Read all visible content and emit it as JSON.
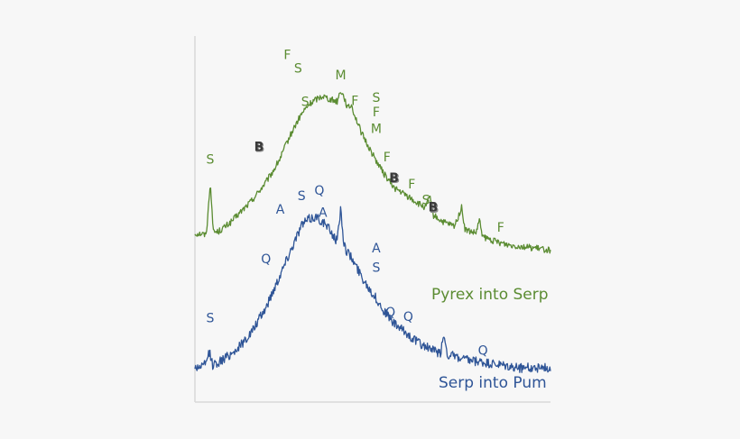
{
  "chart_data": {
    "type": "line",
    "title": "",
    "xlabel": "",
    "ylabel": "",
    "grid": false,
    "axes_visible": [
      "left",
      "bottom"
    ],
    "colors": {
      "axis": "#d9d9d9",
      "series_1": "#5b8c32",
      "series_2": "#2f5597",
      "bold_label_fill": "#3a3a3a",
      "bold_label_shadow": "#8a8a8a"
    },
    "series": [
      {
        "name": "Pyrex into Serp",
        "color": "#5b8c32",
        "shape_points": [
          [
            0,
            0.72
          ],
          [
            0.02,
            0.72
          ],
          [
            0.03,
            0.71
          ],
          [
            0.035,
            0.78
          ],
          [
            0.04,
            0.92
          ],
          [
            0.043,
            1.0
          ],
          [
            0.046,
            0.92
          ],
          [
            0.05,
            0.76
          ],
          [
            0.055,
            0.73
          ],
          [
            0.065,
            0.73
          ],
          [
            0.08,
            0.75
          ],
          [
            0.1,
            0.78
          ],
          [
            0.12,
            0.82
          ],
          [
            0.14,
            0.86
          ],
          [
            0.16,
            0.9
          ],
          [
            0.18,
            0.95
          ],
          [
            0.2,
            1.0
          ],
          [
            0.22,
            1.06
          ],
          [
            0.24,
            1.13
          ],
          [
            0.26,
            1.22
          ],
          [
            0.28,
            1.3
          ],
          [
            0.3,
            1.37
          ],
          [
            0.32,
            1.42
          ],
          [
            0.34,
            1.45
          ],
          [
            0.36,
            1.47
          ],
          [
            0.38,
            1.45
          ],
          [
            0.4,
            1.44
          ],
          [
            0.41,
            1.5
          ],
          [
            0.42,
            1.46
          ],
          [
            0.43,
            1.4
          ],
          [
            0.44,
            1.42
          ],
          [
            0.45,
            1.36
          ],
          [
            0.47,
            1.26
          ],
          [
            0.5,
            1.15
          ],
          [
            0.53,
            1.05
          ],
          [
            0.56,
            0.97
          ],
          [
            0.6,
            0.92
          ],
          [
            0.63,
            0.88
          ],
          [
            0.65,
            0.86
          ],
          [
            0.66,
            0.93
          ],
          [
            0.67,
            0.82
          ],
          [
            0.7,
            0.78
          ],
          [
            0.73,
            0.76
          ],
          [
            0.75,
            0.86
          ],
          [
            0.76,
            0.74
          ],
          [
            0.79,
            0.72
          ],
          [
            0.8,
            0.79
          ],
          [
            0.81,
            0.7
          ],
          [
            0.84,
            0.68
          ],
          [
            0.88,
            0.66
          ],
          [
            0.92,
            0.65
          ],
          [
            0.96,
            0.64
          ],
          [
            1.0,
            0.63
          ]
        ]
      },
      {
        "name": "Serp into Pum",
        "color": "#2f5597",
        "shape_points": [
          [
            0,
            0.0
          ],
          [
            0.03,
            0.01
          ],
          [
            0.04,
            0.06
          ],
          [
            0.05,
            0.01
          ],
          [
            0.08,
            0.03
          ],
          [
            0.12,
            0.07
          ],
          [
            0.16,
            0.13
          ],
          [
            0.2,
            0.22
          ],
          [
            0.24,
            0.34
          ],
          [
            0.28,
            0.46
          ],
          [
            0.3,
            0.52
          ],
          [
            0.32,
            0.54
          ],
          [
            0.34,
            0.55
          ],
          [
            0.36,
            0.53
          ],
          [
            0.38,
            0.5
          ],
          [
            0.4,
            0.46
          ],
          [
            0.41,
            0.58
          ],
          [
            0.42,
            0.44
          ],
          [
            0.44,
            0.4
          ],
          [
            0.47,
            0.33
          ],
          [
            0.5,
            0.27
          ],
          [
            0.53,
            0.21
          ],
          [
            0.56,
            0.16
          ],
          [
            0.6,
            0.12
          ],
          [
            0.63,
            0.09
          ],
          [
            0.66,
            0.07
          ],
          [
            0.69,
            0.05
          ],
          [
            0.7,
            0.12
          ],
          [
            0.71,
            0.05
          ],
          [
            0.75,
            0.03
          ],
          [
            0.8,
            0.02
          ],
          [
            0.85,
            0.01
          ],
          [
            0.9,
            0.0
          ],
          [
            0.95,
            0.0
          ],
          [
            1.0,
            0.0
          ]
        ]
      }
    ],
    "peak_labels": [
      {
        "text": "S",
        "series": "Pyrex into Serp",
        "bold": false,
        "x": 0.043,
        "lift": 0.1
      },
      {
        "text": "B",
        "series": "Pyrex into Serp",
        "bold": true,
        "x": 0.18,
        "lift": 0.22
      },
      {
        "text": "F",
        "series": "Pyrex into Serp",
        "bold": false,
        "x": 0.26,
        "lift": 0.45
      },
      {
        "text": "S",
        "series": "Pyrex into Serp",
        "bold": false,
        "x": 0.29,
        "lift": 0.26
      },
      {
        "text": "S",
        "series": "Pyrex into Serp",
        "bold": false,
        "x": 0.31,
        "lift": 0.02
      },
      {
        "text": "M",
        "series": "Pyrex into Serp",
        "bold": false,
        "x": 0.41,
        "lift": 0.06
      },
      {
        "text": "F",
        "series": "Pyrex into Serp",
        "bold": false,
        "x": 0.45,
        "lift": 0.06
      },
      {
        "text": "S",
        "series": "Pyrex into Serp",
        "bold": false,
        "x": 0.51,
        "lift": 0.32
      },
      {
        "text": "F",
        "series": "Pyrex into Serp",
        "bold": false,
        "x": 0.51,
        "lift": 0.24
      },
      {
        "text": "M",
        "series": "Pyrex into Serp",
        "bold": false,
        "x": 0.51,
        "lift": 0.15
      },
      {
        "text": "F",
        "series": "Pyrex into Serp",
        "bold": false,
        "x": 0.54,
        "lift": 0.09
      },
      {
        "text": "B",
        "series": "Pyrex into Serp",
        "bold": true,
        "x": 0.56,
        "lift": 0.03
      },
      {
        "text": "F",
        "series": "Pyrex into Serp",
        "bold": false,
        "x": 0.61,
        "lift": 0.06
      },
      {
        "text": "S",
        "series": "Pyrex into Serp",
        "bold": false,
        "x": 0.65,
        "lift": 0.02
      },
      {
        "text": "B",
        "series": "Pyrex into Serp",
        "bold": true,
        "x": 0.67,
        "lift": 0.02
      },
      {
        "text": "F",
        "series": "Pyrex into Serp",
        "bold": false,
        "x": 0.86,
        "lift": 0.06
      },
      {
        "text": "S",
        "series": "Serp into Pum",
        "bold": false,
        "x": 0.043,
        "lift": 0.12
      },
      {
        "text": "Q",
        "series": "Serp into Pum",
        "bold": false,
        "x": 0.2,
        "lift": 0.16
      },
      {
        "text": "A",
        "series": "Serp into Pum",
        "bold": false,
        "x": 0.24,
        "lift": 0.22
      },
      {
        "text": "S",
        "series": "Serp into Pum",
        "bold": false,
        "x": 0.3,
        "lift": 0.09
      },
      {
        "text": "Q",
        "series": "Serp into Pum",
        "bold": false,
        "x": 0.35,
        "lift": 0.09
      },
      {
        "text": "A",
        "series": "Serp into Pum",
        "bold": false,
        "x": 0.36,
        "lift": 0.02
      },
      {
        "text": "A",
        "series": "Serp into Pum",
        "bold": false,
        "x": 0.51,
        "lift": 0.17
      },
      {
        "text": "S",
        "series": "Serp into Pum",
        "bold": false,
        "x": 0.51,
        "lift": 0.1
      },
      {
        "text": "Q",
        "series": "Serp into Pum",
        "bold": false,
        "x": 0.55,
        "lift": 0.01
      },
      {
        "text": "Q",
        "series": "Serp into Pum",
        "bold": false,
        "x": 0.6,
        "lift": 0.05
      },
      {
        "text": "Q",
        "series": "Serp into Pum",
        "bold": false,
        "x": 0.81,
        "lift": 0.03
      }
    ]
  }
}
